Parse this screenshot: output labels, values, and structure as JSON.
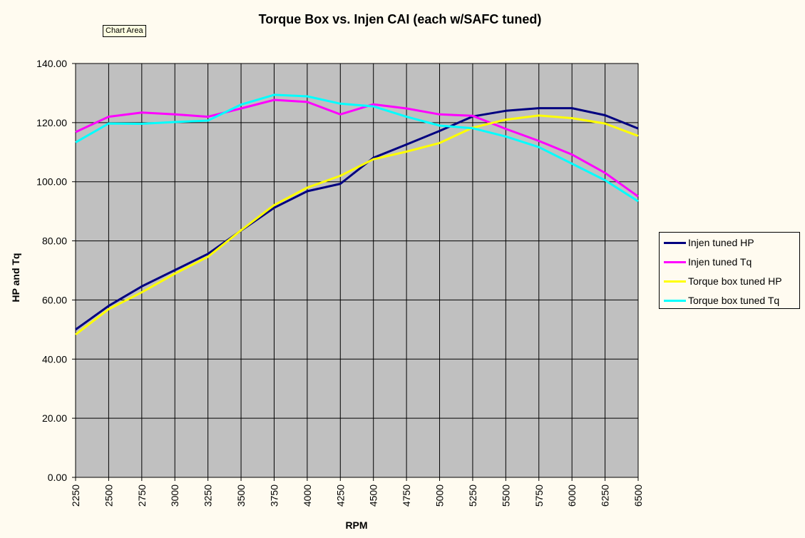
{
  "tooltip": "Chart Area",
  "chart_data": {
    "type": "line",
    "title": "Torque Box vs. Injen CAI (each w/SAFC tuned)",
    "xlabel": "RPM",
    "ylabel": "HP and Tq",
    "categories": [
      "2250",
      "2500",
      "2750",
      "3000",
      "3250",
      "3500",
      "3750",
      "4000",
      "4250",
      "4500",
      "4750",
      "5000",
      "5250",
      "5500",
      "5750",
      "6000",
      "6250",
      "6500"
    ],
    "ylim": [
      0,
      140
    ],
    "ytick_labels": [
      "0.00",
      "20.00",
      "40.00",
      "60.00",
      "80.00",
      "100.00",
      "120.00",
      "140.00"
    ],
    "grid": true,
    "legend_position": "right",
    "plot_background": "#c0c0c0",
    "series": [
      {
        "name": "Injen tuned HP",
        "color": "#000080",
        "values": [
          50.0,
          58.0,
          64.6,
          70.1,
          75.6,
          83.5,
          91.2,
          96.8,
          99.3,
          108.1,
          112.6,
          117.2,
          122.1,
          124.0,
          124.9,
          124.9,
          122.5,
          118.0
        ]
      },
      {
        "name": "Injen tuned Tq",
        "color": "#ff00ff",
        "values": [
          116.8,
          122.0,
          123.4,
          122.8,
          122.0,
          124.8,
          127.7,
          127.0,
          122.8,
          126.2,
          124.8,
          122.8,
          122.3,
          117.9,
          113.8,
          109.2,
          103.0,
          95.0
        ]
      },
      {
        "name": "Torque box tuned HP",
        "color": "#ffff00",
        "values": [
          48.3,
          56.9,
          62.6,
          68.9,
          74.6,
          83.6,
          92.1,
          98.0,
          102.0,
          107.6,
          110.2,
          113.1,
          118.3,
          121.0,
          122.4,
          121.5,
          119.7,
          115.5
        ]
      },
      {
        "name": "Torque box tuned Tq",
        "color": "#00ffff",
        "values": [
          113.3,
          119.7,
          119.6,
          120.2,
          120.7,
          126.1,
          129.4,
          128.9,
          126.4,
          125.5,
          122.0,
          119.0,
          118.1,
          115.3,
          111.7,
          106.1,
          100.5,
          93.4
        ]
      }
    ]
  }
}
